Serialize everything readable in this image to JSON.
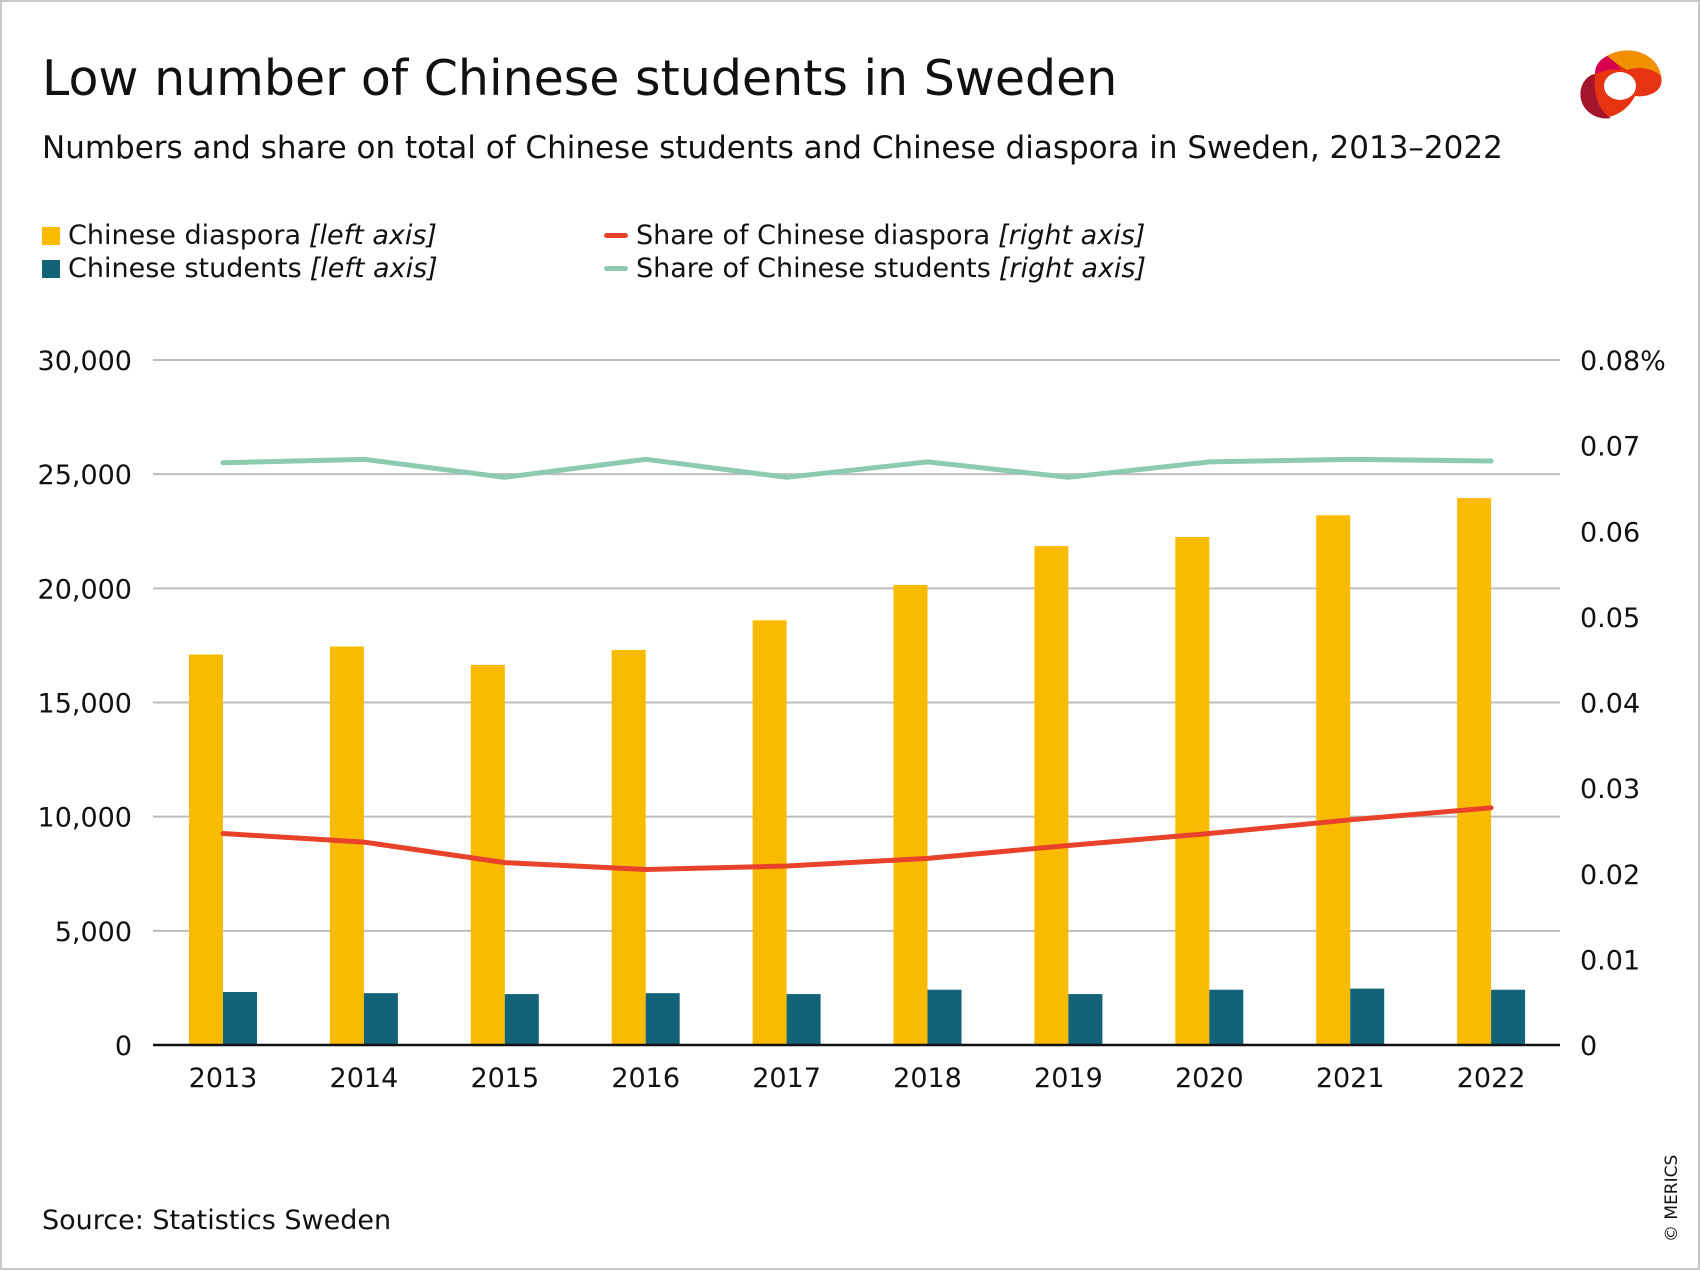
{
  "title": "Low number of Chinese students in Sweden",
  "subtitle": "Numbers and share on total of Chinese students and Chinese diaspora in Sweden, 2013–2022",
  "source": "Source: Statistics Sweden",
  "copyright": "© MERICS",
  "logo": "merics-logo",
  "legend": [
    {
      "label": "Chinese diaspora",
      "axis": "[left axis]"
    },
    {
      "label": "Chinese students",
      "axis": "[left axis]"
    },
    {
      "label": "Share of Chinese diaspora",
      "axis": "[right axis]"
    },
    {
      "label": "Share of Chinese students",
      "axis": "[right axis]"
    }
  ],
  "chart_data": {
    "type": "bar",
    "categories": [
      "2013",
      "2014",
      "2015",
      "2016",
      "2017",
      "2018",
      "2019",
      "2020",
      "2021",
      "2022"
    ],
    "left_axis": {
      "ylim": [
        0,
        30000
      ],
      "ticks": [
        "0",
        "5,000",
        "10,000",
        "15,000",
        "20,000",
        "25,000",
        "30,000"
      ]
    },
    "right_axis": {
      "ylim": [
        0,
        0.08
      ],
      "ticks": [
        "0",
        "0.01",
        "0.02",
        "0.03",
        "0.04",
        "0.05",
        "0.06",
        "0.07",
        "0.08%"
      ]
    },
    "grid": true,
    "legend_position": "top-left",
    "series": [
      {
        "name": "Chinese diaspora",
        "type": "bar",
        "axis": "left",
        "color": "#f9bb00",
        "values": [
          17100,
          17450,
          16650,
          17300,
          18600,
          20150,
          21850,
          22250,
          23200,
          23950
        ]
      },
      {
        "name": "Chinese students",
        "type": "bar",
        "axis": "left",
        "color": "#136378",
        "values": [
          2320,
          2270,
          2230,
          2270,
          2230,
          2420,
          2230,
          2420,
          2470,
          2420
        ]
      },
      {
        "name": "Share of Chinese diaspora",
        "type": "line",
        "axis": "right",
        "color": "#e8422a",
        "values": [
          0.0247,
          0.0237,
          0.0213,
          0.0205,
          0.0209,
          0.0218,
          0.0233,
          0.0247,
          0.0263,
          0.0277
        ]
      },
      {
        "name": "Share of Chinese students",
        "type": "line",
        "axis": "right",
        "color": "#8ccbb0",
        "values": [
          0.068,
          0.0684,
          0.0663,
          0.0684,
          0.0663,
          0.0681,
          0.0663,
          0.0681,
          0.0684,
          0.0682
        ]
      }
    ]
  }
}
